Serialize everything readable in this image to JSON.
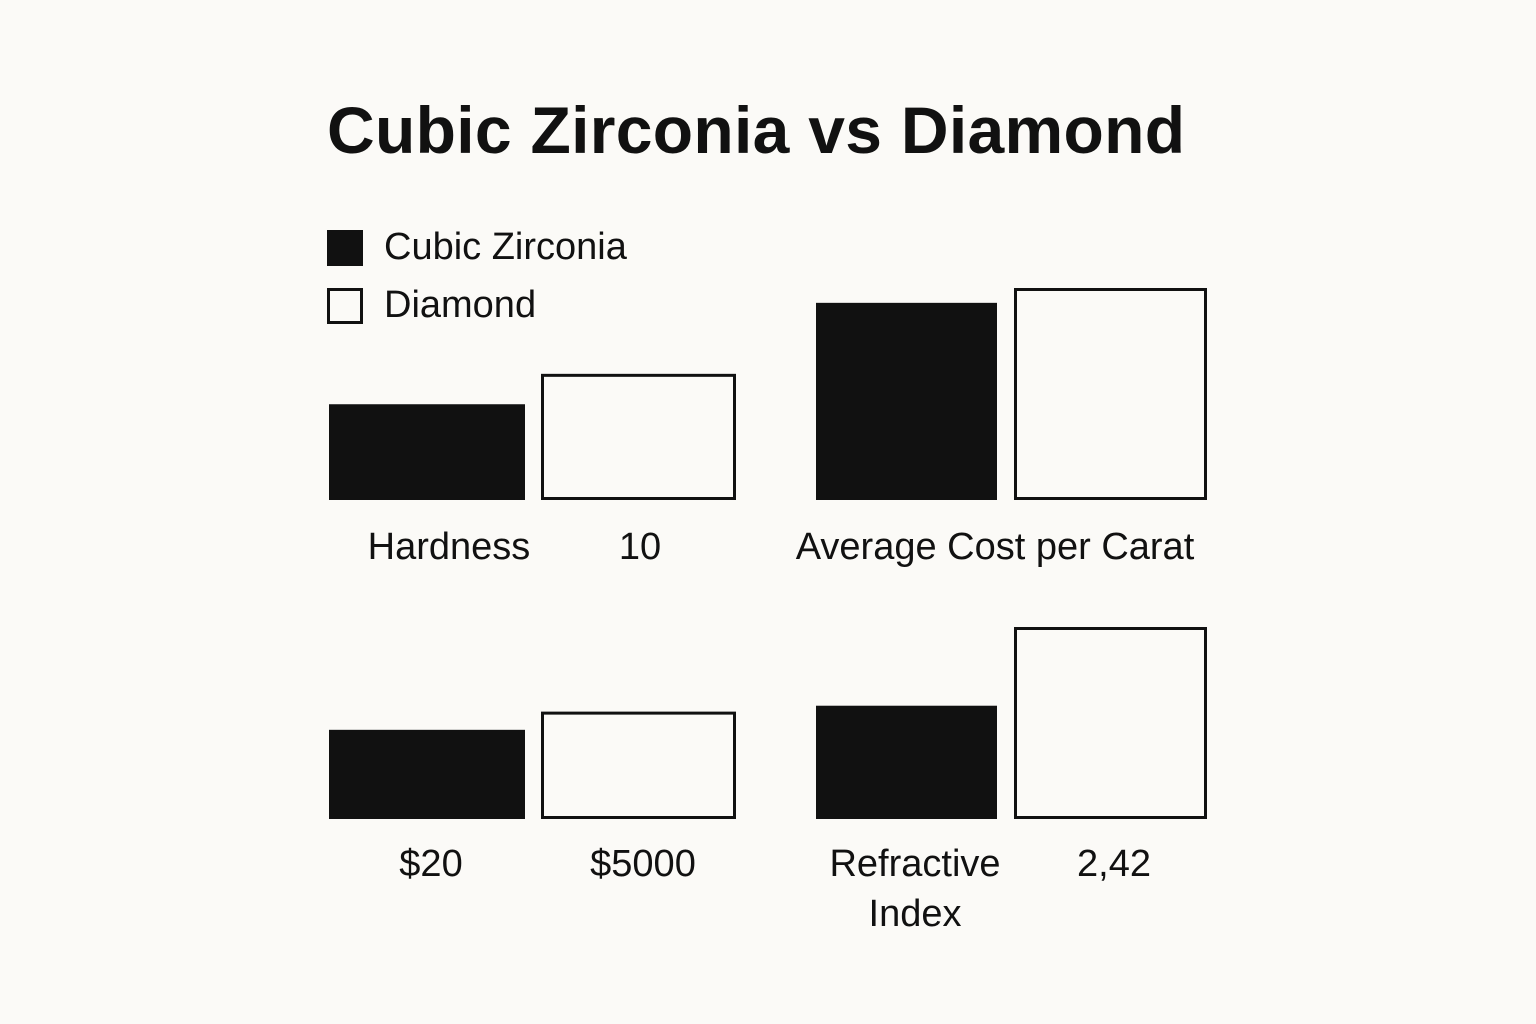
{
  "chart_data": {
    "type": "bar",
    "title": "Cubic Zirconia vs Diamond",
    "legend": {
      "placement": "top-left",
      "entries": [
        {
          "name": "Cubic Zirconia",
          "color": "#111111",
          "fill": "solid"
        },
        {
          "name": "Diamond",
          "color": "#111111",
          "fill": "outline"
        }
      ]
    },
    "panels": [
      {
        "category": "Hardness",
        "values": [
          0.63,
          0.83
        ],
        "value_labels": [
          "",
          "10"
        ]
      },
      {
        "category": "Average Cost per Carat",
        "values": [
          0.93,
          1.0
        ],
        "value_labels": [
          "$20",
          "$5000"
        ]
      },
      {
        "category": "Refractive Index",
        "values": [
          0.59,
          1.0
        ],
        "value_labels": [
          "",
          "2,42"
        ]
      }
    ],
    "extra_panel": {
      "values": [
        0.49,
        0.59
      ],
      "note": "unlabeled bar pair above the $20 / $5000 labels"
    },
    "values_note": "bar heights are relative, read visually; no numeric axis is printed",
    "grid": false
  }
}
